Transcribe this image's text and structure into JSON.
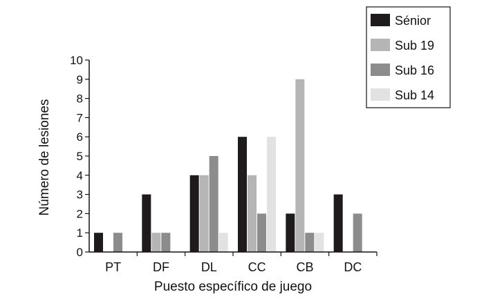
{
  "chart_data": {
    "type": "bar",
    "xlabel": "Puesto específico de juego",
    "ylabel": "Número de lesiones",
    "ylim": [
      0,
      10
    ],
    "yticks": [
      0,
      1,
      2,
      3,
      4,
      5,
      6,
      7,
      8,
      9,
      10
    ],
    "categories": [
      "PT",
      "DF",
      "DL",
      "CC",
      "CB",
      "DC"
    ],
    "series": [
      {
        "name": "Sénior",
        "color": "#1f1b1c",
        "values": [
          1,
          3,
          4,
          6,
          2,
          3
        ]
      },
      {
        "name": "Sub 19",
        "color": "#b5b5b5",
        "values": [
          0,
          1,
          4,
          4,
          9,
          0
        ]
      },
      {
        "name": "Sub 16",
        "color": "#8c8c8c",
        "values": [
          1,
          1,
          5,
          2,
          1,
          2
        ]
      },
      {
        "name": "Sub 14",
        "color": "#e2e2e2",
        "values": [
          0,
          0,
          1,
          6,
          1,
          0
        ]
      }
    ],
    "grid": false,
    "legend_position": "top-right"
  }
}
